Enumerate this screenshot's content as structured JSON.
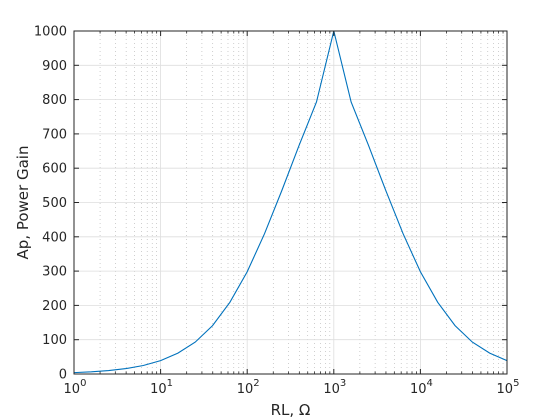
{
  "chart_data": {
    "type": "line",
    "xlabel": "RL, Ω",
    "ylabel": "Ap, Power Gain",
    "xscale": "log",
    "xlim": [
      1,
      100000
    ],
    "ylim": [
      0,
      1000
    ],
    "grid": "major and minor",
    "x_ticks": [
      {
        "value": 1,
        "base": "10",
        "exp": "0"
      },
      {
        "value": 10,
        "base": "10",
        "exp": "1"
      },
      {
        "value": 100,
        "base": "10",
        "exp": "2"
      },
      {
        "value": 1000,
        "base": "10",
        "exp": "3"
      },
      {
        "value": 10000,
        "base": "10",
        "exp": "4"
      },
      {
        "value": 100000,
        "base": "10",
        "exp": "5"
      }
    ],
    "y_ticks": [
      0,
      100,
      200,
      300,
      400,
      500,
      600,
      700,
      800,
      900,
      1000
    ],
    "series": [
      {
        "color": "#0072bd",
        "points": [
          [
            1,
            4
          ],
          [
            1.585,
            6.3
          ],
          [
            2.512,
            10
          ],
          [
            3.981,
            15.8
          ],
          [
            6.31,
            24.8
          ],
          [
            10,
            39
          ],
          [
            15.85,
            61
          ],
          [
            25.12,
            93
          ],
          [
            39.81,
            141
          ],
          [
            63.1,
            209
          ],
          [
            100,
            298
          ],
          [
            158.5,
            409
          ],
          [
            251.2,
            535
          ],
          [
            398.1,
            667
          ],
          [
            631,
            793
          ],
          [
            1000,
            1000
          ],
          [
            1585,
            793
          ],
          [
            2512,
            667
          ],
          [
            3981,
            535
          ],
          [
            6310,
            409
          ],
          [
            10000,
            298
          ],
          [
            15850,
            209
          ],
          [
            25120,
            141
          ],
          [
            39810,
            93
          ],
          [
            63100,
            61
          ],
          [
            100000,
            39
          ]
        ]
      }
    ]
  }
}
